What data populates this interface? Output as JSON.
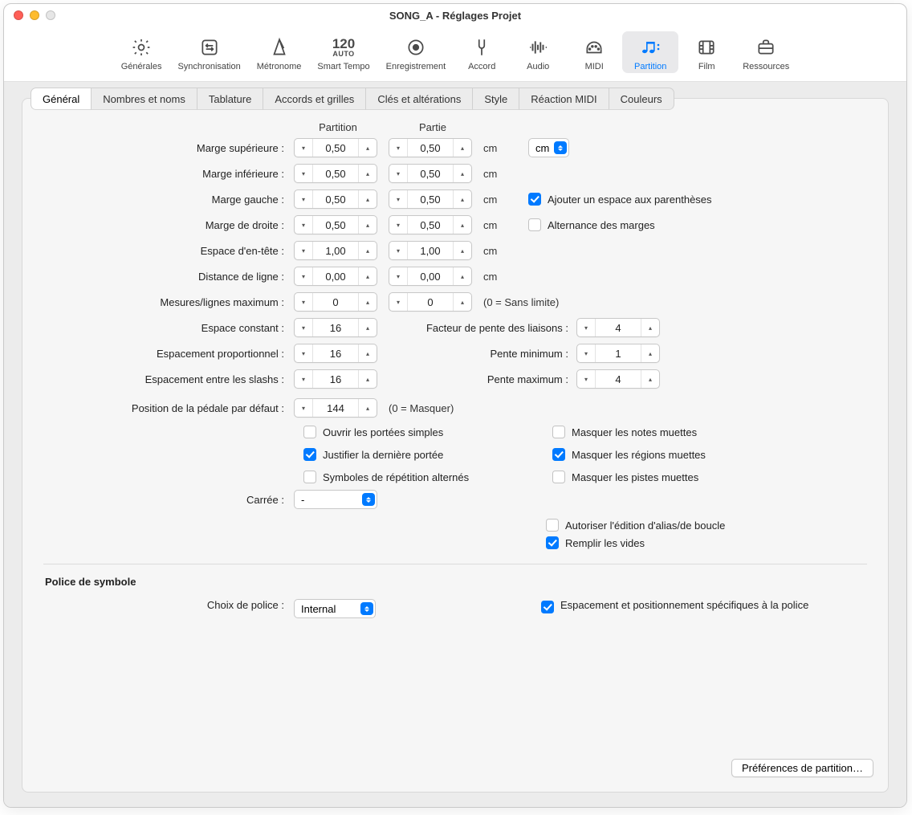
{
  "window": {
    "title": "SONG_A - Réglages Projet"
  },
  "toolbar": [
    {
      "id": "general",
      "label": "Générales"
    },
    {
      "id": "sync",
      "label": "Synchronisation"
    },
    {
      "id": "metronome",
      "label": "Métronome"
    },
    {
      "id": "smarttempo",
      "label": "Smart Tempo",
      "line1": "120",
      "line2": "AUTO"
    },
    {
      "id": "recording",
      "label": "Enregistrement"
    },
    {
      "id": "tuning",
      "label": "Accord"
    },
    {
      "id": "audio",
      "label": "Audio"
    },
    {
      "id": "midi",
      "label": "MIDI"
    },
    {
      "id": "score",
      "label": "Partition",
      "active": true
    },
    {
      "id": "film",
      "label": "Film"
    },
    {
      "id": "assets",
      "label": "Ressources"
    }
  ],
  "subtabs": [
    "Général",
    "Nombres et noms",
    "Tablature",
    "Accords et grilles",
    "Clés et altérations",
    "Style",
    "Réaction MIDI",
    "Couleurs"
  ],
  "subtab_active": 0,
  "headers": {
    "score": "Partition",
    "part": "Partie"
  },
  "margins": {
    "top": {
      "label": "Marge supérieure :",
      "score": "0,50",
      "part": "0,50",
      "unit": "cm"
    },
    "bottom": {
      "label": "Marge inférieure :",
      "score": "0,50",
      "part": "0,50",
      "unit": "cm"
    },
    "left": {
      "label": "Marge gauche :",
      "score": "0,50",
      "part": "0,50",
      "unit": "cm"
    },
    "right": {
      "label": "Marge de droite :",
      "score": "0,50",
      "part": "0,50",
      "unit": "cm"
    },
    "header": {
      "label": "Espace d'en-tête :",
      "score": "1,00",
      "part": "1,00",
      "unit": "cm"
    },
    "line": {
      "label": "Distance de ligne :",
      "score": "0,00",
      "part": "0,00",
      "unit": "cm"
    },
    "max": {
      "label": "Mesures/lignes maximum :",
      "score": "0",
      "part": "0",
      "note": "(0 = Sans limite)"
    }
  },
  "unit_popup": "cm",
  "side_checks": {
    "bracket": {
      "label": "Ajouter un espace aux parenthèses",
      "on": true
    },
    "alt": {
      "label": "Alternance des marges",
      "on": false
    }
  },
  "spacing": {
    "constant": {
      "label": "Espace constant :",
      "val": "16"
    },
    "prop": {
      "label": "Espacement proportionnel :",
      "val": "16"
    },
    "slash": {
      "label": "Espacement entre les slashs :",
      "val": "16"
    }
  },
  "slope": {
    "factor": {
      "label": "Facteur de pente des liaisons :",
      "val": "4"
    },
    "min": {
      "label": "Pente minimum :",
      "val": "1"
    },
    "max": {
      "label": "Pente maximum :",
      "val": "4"
    }
  },
  "pedal": {
    "label": "Position de la pédale par défaut :",
    "val": "144",
    "note": "(0 = Masquer)"
  },
  "checks_left": [
    {
      "id": "open",
      "label": "Ouvrir les portées simples",
      "on": false
    },
    {
      "id": "justify",
      "label": "Justifier la dernière portée",
      "on": true
    },
    {
      "id": "repeat",
      "label": "Symboles de répétition alternés",
      "on": false
    }
  ],
  "checks_right": [
    {
      "id": "hidenotes",
      "label": "Masquer les notes muettes",
      "on": false
    },
    {
      "id": "hideregions",
      "label": "Masquer les régions muettes",
      "on": true
    },
    {
      "id": "hidetracks",
      "label": "Masquer les pistes muettes",
      "on": false
    }
  ],
  "square": {
    "label": "Carrée :",
    "val": "-"
  },
  "extra": [
    {
      "id": "alias",
      "label": "Autoriser l'édition d'alias/de boucle",
      "on": false
    },
    {
      "id": "fill",
      "label": "Remplir les vides",
      "on": true
    }
  ],
  "font_section": {
    "title": "Police de symbole",
    "label": "Choix de police :",
    "val": "Internal",
    "check": {
      "label": "Espacement et positionnement spécifiques à la police",
      "on": true
    }
  },
  "pref_button": "Préférences de partition…",
  "colors": {
    "accent": "#007aff",
    "bg": "#ececec",
    "panel": "#f6f6f6"
  }
}
